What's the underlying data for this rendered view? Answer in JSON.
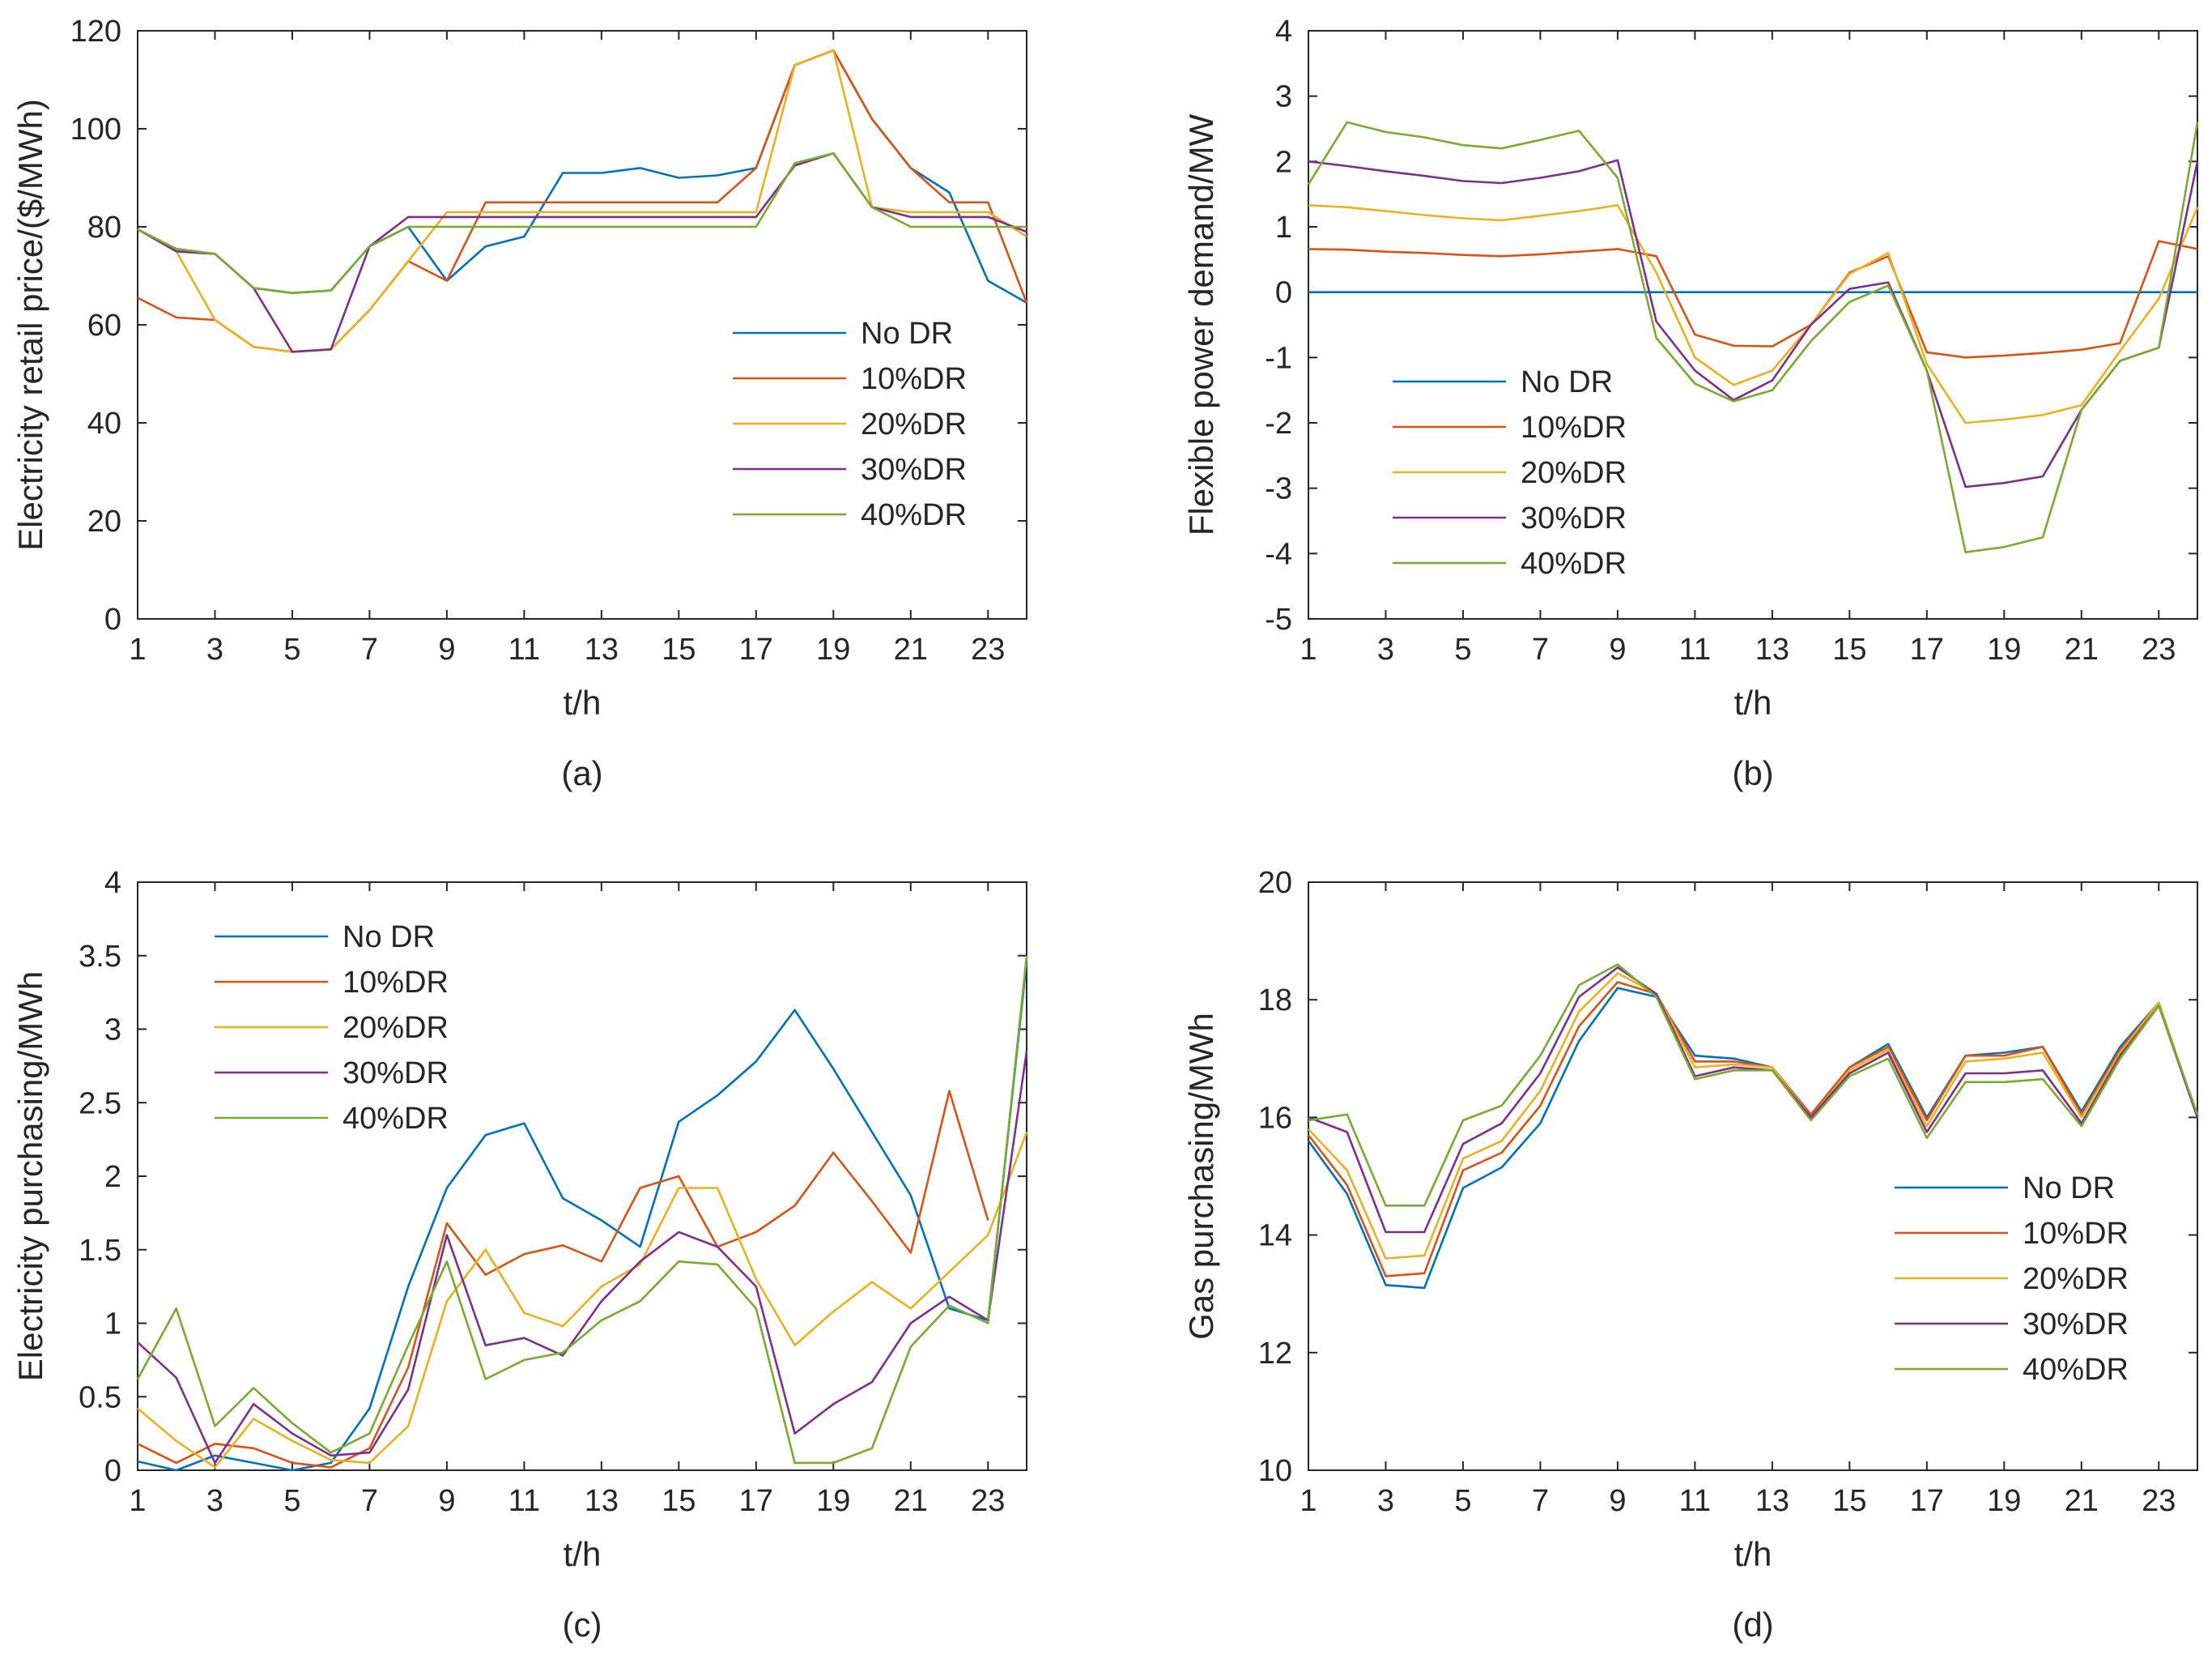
{
  "colors": {
    "No DR": "#0072BD",
    "10%DR": "#D95319",
    "20%DR": "#EDB120",
    "30%DR": "#7E2F8E",
    "40%DR": "#77AC30"
  },
  "chart_data": [
    {
      "type": "line",
      "caption": "(a)",
      "xlabel": "t/h",
      "ylabel": "Electricity retail price/($/MWh)",
      "xlim": [
        1,
        24
      ],
      "ylim": [
        0,
        120
      ],
      "xticks": [
        "1",
        "3",
        "5",
        "7",
        "9",
        "11",
        "13",
        "15",
        "17",
        "19",
        "21",
        "23"
      ],
      "yticks": [
        "0",
        "20",
        "40",
        "60",
        "80",
        "100",
        "120"
      ],
      "legend_position": "center-right",
      "x": [
        1,
        2,
        3,
        4,
        5,
        6,
        7,
        8,
        9,
        10,
        11,
        12,
        13,
        14,
        15,
        16,
        17,
        18,
        19,
        20,
        21,
        22,
        23,
        24
      ],
      "series": [
        {
          "name": "No DR",
          "values": [
            79.5,
            75,
            74.5,
            67.5,
            66.5,
            67,
            76,
            80,
            69,
            76,
            78,
            91,
            91,
            92,
            90,
            90.5,
            92,
            113,
            116,
            102,
            92,
            87,
            69,
            64.5
          ]
        },
        {
          "name": "10%DR",
          "values": [
            65.5,
            61.5,
            61,
            55.5,
            54.5,
            55,
            63,
            73,
            69,
            85,
            85,
            85,
            85,
            85,
            85,
            85,
            92,
            113,
            116,
            102,
            92,
            85,
            85,
            64.5
          ]
        },
        {
          "name": "20%DR",
          "values": [
            79.5,
            75,
            61,
            55.5,
            54.5,
            55,
            63,
            73,
            83,
            83,
            83,
            83,
            83,
            83,
            83,
            83,
            83,
            113,
            116,
            84,
            83,
            83,
            83,
            78
          ]
        },
        {
          "name": "30%DR",
          "values": [
            79.5,
            75,
            74.5,
            67.5,
            54.5,
            55,
            76,
            82,
            82,
            82,
            82,
            82,
            82,
            82,
            82,
            82,
            82,
            92.5,
            95,
            84,
            82,
            82,
            82,
            79
          ]
        },
        {
          "name": "40%DR",
          "values": [
            79.5,
            75.5,
            74.5,
            67.5,
            66.5,
            67,
            76,
            80,
            80,
            80,
            80,
            80,
            80,
            80,
            80,
            80,
            80,
            93,
            95,
            84,
            80,
            80,
            80,
            80
          ]
        }
      ]
    },
    {
      "type": "line",
      "caption": "(b)",
      "xlabel": "t/h",
      "ylabel": "Flexible power demand/MW",
      "xlim": [
        1,
        24
      ],
      "ylim": [
        -5,
        4
      ],
      "xticks": [
        "1",
        "3",
        "5",
        "7",
        "9",
        "11",
        "13",
        "15",
        "17",
        "19",
        "21",
        "23"
      ],
      "yticks": [
        "-5",
        "-4",
        "-3",
        "-2",
        "-1",
        "0",
        "1",
        "2",
        "3",
        "4"
      ],
      "legend_position": "bottom-left",
      "x": [
        1,
        2,
        3,
        4,
        5,
        6,
        7,
        8,
        9,
        10,
        11,
        12,
        13,
        14,
        15,
        16,
        17,
        18,
        19,
        20,
        21,
        22,
        23,
        24
      ],
      "series": [
        {
          "name": "No DR",
          "values": [
            0,
            0,
            0,
            0,
            0,
            0,
            0,
            0,
            0,
            0,
            0,
            0,
            0,
            0,
            0,
            0,
            0,
            0,
            0,
            0,
            0,
            0,
            0,
            0
          ]
        },
        {
          "name": "10%DR",
          "values": [
            0.66,
            0.65,
            0.62,
            0.6,
            0.57,
            0.55,
            0.58,
            0.62,
            0.66,
            0.55,
            -0.65,
            -0.82,
            -0.83,
            -0.5,
            0.3,
            0.55,
            -0.92,
            -1.0,
            -0.97,
            -0.93,
            -0.88,
            -0.78,
            0.78,
            0.66
          ]
        },
        {
          "name": "20%DR",
          "values": [
            1.33,
            1.3,
            1.24,
            1.18,
            1.13,
            1.1,
            1.17,
            1.24,
            1.33,
            0.3,
            -1.0,
            -1.42,
            -1.2,
            -0.5,
            0.28,
            0.6,
            -1.1,
            -2.0,
            -1.95,
            -1.88,
            -1.73,
            -0.9,
            -0.1,
            1.3
          ]
        },
        {
          "name": "30%DR",
          "values": [
            2.0,
            1.93,
            1.85,
            1.78,
            1.7,
            1.67,
            1.75,
            1.85,
            2.02,
            -0.45,
            -1.2,
            -1.65,
            -1.35,
            -0.5,
            0.05,
            0.15,
            -1.2,
            -2.98,
            -2.92,
            -2.82,
            -1.8,
            -1.05,
            -0.85,
            2.0
          ]
        },
        {
          "name": "40%DR",
          "values": [
            1.65,
            2.6,
            2.45,
            2.37,
            2.25,
            2.2,
            2.33,
            2.47,
            1.75,
            -0.7,
            -1.4,
            -1.67,
            -1.5,
            -0.75,
            -0.15,
            0.1,
            -1.2,
            -3.98,
            -3.9,
            -3.75,
            -1.8,
            -1.05,
            -0.85,
            2.6
          ]
        }
      ]
    },
    {
      "type": "line",
      "caption": "(c)",
      "xlabel": "t/h",
      "ylabel": "Electricity purchasing/MWh",
      "xlim": [
        1,
        24
      ],
      "ylim": [
        0,
        4
      ],
      "xticks": [
        "1",
        "3",
        "5",
        "7",
        "9",
        "11",
        "13",
        "15",
        "17",
        "19",
        "21",
        "23"
      ],
      "yticks": [
        "0",
        "0.5",
        "1",
        "1.5",
        "2",
        "2.5",
        "3",
        "3.5",
        "4"
      ],
      "legend_position": "top-left",
      "x": [
        1,
        2,
        3,
        4,
        5,
        6,
        7,
        8,
        9,
        10,
        11,
        12,
        13,
        14,
        15,
        16,
        17,
        18,
        19,
        20,
        21,
        22,
        23,
        24
      ],
      "series": [
        {
          "name": "No DR",
          "values": [
            0.06,
            0,
            0.1,
            0.05,
            0,
            0.05,
            0.42,
            1.25,
            1.92,
            2.28,
            2.36,
            1.85,
            1.7,
            1.52,
            2.37,
            2.55,
            2.78,
            3.13,
            2.73,
            2.3,
            1.87,
            1.1,
            1.02,
            3.46
          ]
        },
        {
          "name": "10%DR",
          "values": [
            0.18,
            0.05,
            0.18,
            0.15,
            0.05,
            0.02,
            0.15,
            0.7,
            1.68,
            1.33,
            1.47,
            1.53,
            1.42,
            1.92,
            2.0,
            1.52,
            1.62,
            1.8,
            2.16,
            1.83,
            1.48,
            2.58,
            1.7,
            null
          ]
        },
        {
          "name": "20%DR",
          "values": [
            0.42,
            0.2,
            0.02,
            0.35,
            0.2,
            0.07,
            0.05,
            0.3,
            1.15,
            1.5,
            1.07,
            0.98,
            1.25,
            1.4,
            1.92,
            1.92,
            1.3,
            0.85,
            1.08,
            1.28,
            1.1,
            1.35,
            1.6,
            2.3
          ]
        },
        {
          "name": "30%DR",
          "values": [
            0.87,
            0.63,
            0.05,
            0.45,
            0.25,
            0.1,
            0.12,
            0.55,
            1.6,
            0.85,
            0.9,
            0.78,
            1.15,
            1.42,
            1.62,
            1.52,
            1.25,
            0.25,
            0.45,
            0.6,
            1.0,
            1.18,
            1.02,
            2.85
          ]
        },
        {
          "name": "40%DR",
          "values": [
            0.62,
            1.1,
            0.3,
            0.56,
            0.32,
            0.12,
            0.25,
            0.85,
            1.42,
            0.62,
            0.75,
            0.8,
            1.02,
            1.15,
            1.42,
            1.4,
            1.1,
            0.05,
            0.05,
            0.15,
            0.84,
            1.12,
            1.0,
            3.5
          ]
        }
      ]
    },
    {
      "type": "line",
      "caption": "(d)",
      "xlabel": "t/h",
      "ylabel": "Gas purchasing/MWh",
      "xlim": [
        1,
        24
      ],
      "ylim": [
        10,
        20
      ],
      "xticks": [
        "1",
        "3",
        "5",
        "7",
        "9",
        "11",
        "13",
        "15",
        "17",
        "19",
        "21",
        "23"
      ],
      "yticks": [
        "10",
        "12",
        "14",
        "16",
        "18",
        "20"
      ],
      "legend_position": "bottom-right",
      "x": [
        1,
        2,
        3,
        4,
        5,
        6,
        7,
        8,
        9,
        10,
        11,
        12,
        13,
        14,
        15,
        16,
        17,
        18,
        19,
        20,
        21,
        22,
        23,
        24
      ],
      "series": [
        {
          "name": "No DR",
          "values": [
            15.6,
            14.7,
            13.15,
            13.1,
            14.8,
            15.15,
            15.9,
            17.3,
            18.2,
            18.05,
            17.05,
            17.0,
            16.85,
            16.05,
            16.85,
            17.25,
            16.0,
            17.05,
            17.1,
            17.2,
            16.1,
            17.2,
            17.95,
            16.0
          ]
        },
        {
          "name": "10%DR",
          "values": [
            15.7,
            14.85,
            13.3,
            13.35,
            15.1,
            15.4,
            16.2,
            17.55,
            18.3,
            18.1,
            16.95,
            16.95,
            16.85,
            16.05,
            16.85,
            17.2,
            15.95,
            17.05,
            17.05,
            17.2,
            16.05,
            17.15,
            17.95,
            16.0
          ]
        },
        {
          "name": "20%DR",
          "values": [
            15.8,
            15.1,
            13.6,
            13.65,
            15.3,
            15.6,
            16.45,
            17.8,
            18.45,
            18.1,
            16.85,
            16.9,
            16.85,
            16.0,
            16.8,
            17.15,
            15.85,
            16.95,
            17.0,
            17.1,
            16.0,
            17.1,
            17.95,
            16.0
          ]
        },
        {
          "name": "30%DR",
          "values": [
            16.0,
            15.75,
            14.05,
            14.05,
            15.55,
            15.9,
            16.75,
            18.05,
            18.55,
            18.1,
            16.7,
            16.85,
            16.8,
            16.0,
            16.75,
            17.1,
            15.75,
            16.75,
            16.75,
            16.8,
            15.9,
            17.05,
            17.9,
            16.0
          ]
        },
        {
          "name": "40%DR",
          "values": [
            15.95,
            16.05,
            14.5,
            14.5,
            15.95,
            16.2,
            17.05,
            18.25,
            18.6,
            18.05,
            16.65,
            16.8,
            16.8,
            15.95,
            16.7,
            17.0,
            15.65,
            16.6,
            16.6,
            16.65,
            15.85,
            17.0,
            17.9,
            16.05
          ]
        }
      ]
    }
  ]
}
